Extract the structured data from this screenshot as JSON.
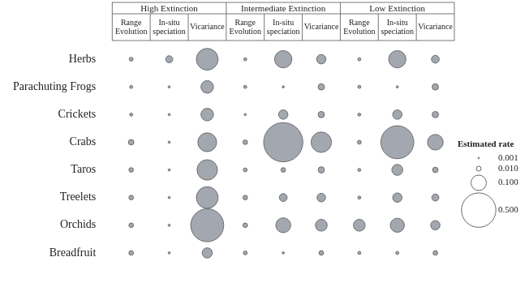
{
  "chart_data": {
    "type": "bubble",
    "groups": [
      {
        "name": "High Extinction",
        "columns": [
          "Range Evolution",
          "In-situ speciation",
          "Vicariance"
        ]
      },
      {
        "name": "Intermediate Extinction",
        "columns": [
          "Range Evolution",
          "In-situ speciation",
          "Vicariance"
        ]
      },
      {
        "name": "Low Extinction",
        "columns": [
          "Range Evolution",
          "In-situ speciation",
          "Vicariance"
        ]
      }
    ],
    "rows": [
      "Herbs",
      "Parachuting Frogs",
      "Crickets",
      "Crabs",
      "Taros",
      "Treelets",
      "Orchids",
      "Breadfruit"
    ],
    "values": [
      [
        0.0065,
        0.021,
        0.2,
        0.004,
        0.126,
        0.037,
        0.004,
        0.126,
        0.026
      ],
      [
        0.004,
        0.002,
        0.067,
        0.004,
        0.002,
        0.017,
        0.004,
        0.002,
        0.017
      ],
      [
        0.004,
        0.002,
        0.067,
        0.002,
        0.037,
        0.017,
        0.004,
        0.037,
        0.017
      ],
      [
        0.013,
        0.002,
        0.15,
        0.009,
        0.65,
        0.176,
        0.0065,
        0.46,
        0.104
      ],
      [
        0.009,
        0.002,
        0.176,
        0.0065,
        0.009,
        0.017,
        0.004,
        0.051,
        0.013
      ],
      [
        0.009,
        0.002,
        0.2,
        0.009,
        0.026,
        0.031,
        0.004,
        0.037,
        0.021
      ],
      [
        0.009,
        0.002,
        0.46,
        0.009,
        0.094,
        0.059,
        0.059,
        0.084,
        0.037
      ],
      [
        0.009,
        0.002,
        0.044,
        0.0065,
        0.002,
        0.009,
        0.004,
        0.004,
        0.009
      ]
    ],
    "color": "#a3a8b0",
    "size_legend": {
      "title": "Estimated rate",
      "values": [
        0.001,
        0.01,
        0.1,
        0.5
      ],
      "labels": [
        "0.001",
        "0.010",
        "0.100",
        "0.500"
      ]
    },
    "tick_labels": "y",
    "grid": false
  }
}
